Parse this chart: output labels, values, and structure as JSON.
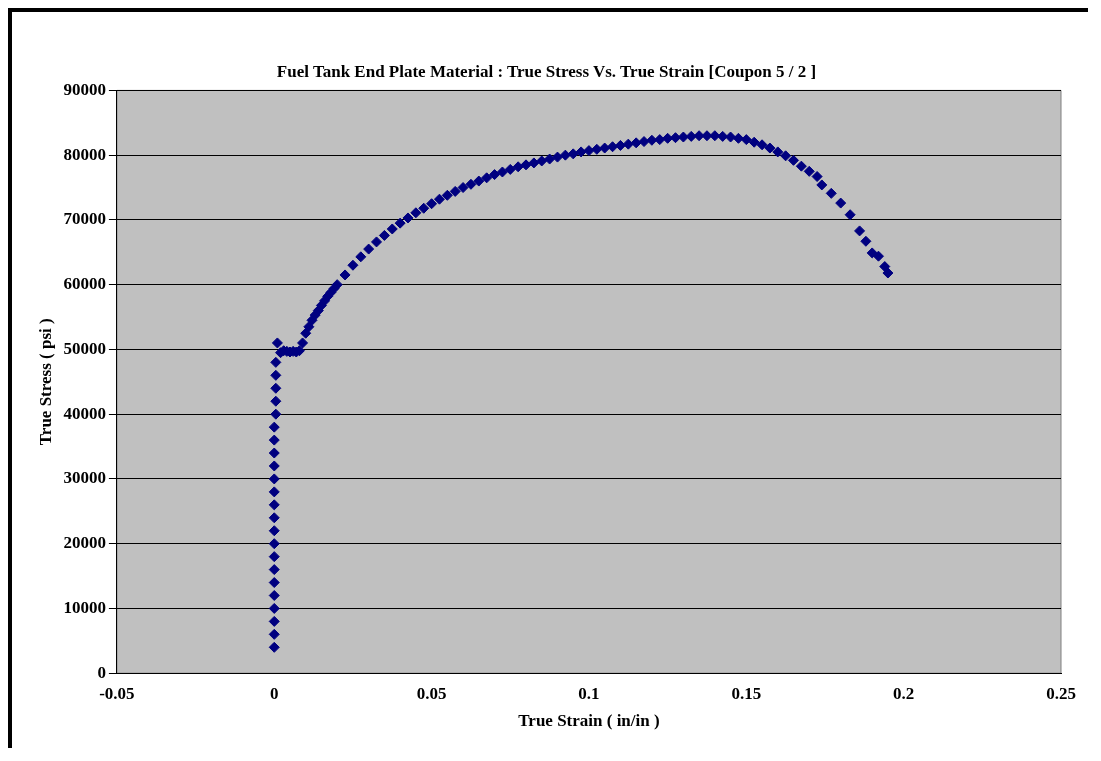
{
  "chart_data": {
    "type": "scatter",
    "title": "Fuel Tank End Plate Material : True Stress Vs. True Strain [Coupon 5 / 2 ]",
    "xlabel": "True Strain ( in/in )",
    "ylabel": "True Stress ( psi )",
    "xlim": [
      -0.05,
      0.25
    ],
    "xticks": [
      -0.05,
      0,
      0.05,
      0.1,
      0.15,
      0.2,
      0.25
    ],
    "ylim": [
      0,
      90000
    ],
    "yticks": [
      0,
      10000,
      20000,
      30000,
      40000,
      50000,
      60000,
      70000,
      80000,
      90000
    ],
    "grid": "y",
    "marker": "diamond",
    "legend": false,
    "series": [
      {
        "color": "#000080",
        "x": [
          0,
          0,
          0,
          0,
          0,
          0,
          0,
          0,
          0,
          0,
          0,
          0,
          0,
          0,
          0,
          0,
          0,
          0,
          0.0005,
          0.0005,
          0.0005,
          0.0005,
          0.0005,
          0.001,
          0.002,
          0.003,
          0.004,
          0.005,
          0.006,
          0.007,
          0.008,
          0.009,
          0.01,
          0.011,
          0.012,
          0.013,
          0.014,
          0.015,
          0.016,
          0.017,
          0.018,
          0.019,
          0.02,
          0.0225,
          0.025,
          0.0275,
          0.03,
          0.0325,
          0.035,
          0.0375,
          0.04,
          0.0425,
          0.045,
          0.0475,
          0.05,
          0.0525,
          0.055,
          0.0575,
          0.06,
          0.0625,
          0.065,
          0.0675,
          0.07,
          0.0725,
          0.075,
          0.0775,
          0.08,
          0.0825,
          0.085,
          0.0875,
          0.09,
          0.0925,
          0.095,
          0.0975,
          0.1,
          0.1025,
          0.105,
          0.1075,
          0.11,
          0.1125,
          0.115,
          0.1175,
          0.12,
          0.1225,
          0.125,
          0.1275,
          0.13,
          0.1325,
          0.135,
          0.1375,
          0.14,
          0.1425,
          0.145,
          0.1475,
          0.15,
          0.1525,
          0.155,
          0.1575,
          0.16,
          0.1625,
          0.165,
          0.1675,
          0.17,
          0.1725,
          0.174,
          0.177,
          0.18,
          0.183,
          0.186,
          0.188,
          0.19,
          0.192,
          0.194,
          0.195
        ],
        "values": [
          4000,
          6000,
          8000,
          10000,
          12000,
          14000,
          16000,
          18000,
          20000,
          22000,
          24000,
          26000,
          28000,
          30000,
          32000,
          34000,
          36000,
          38000,
          40000,
          42000,
          44000,
          46000,
          48000,
          51000,
          49500,
          49800,
          49700,
          49600,
          49700,
          49600,
          49800,
          51000,
          52500,
          53500,
          54500,
          55300,
          56000,
          56800,
          57500,
          58200,
          58800,
          59400,
          60000,
          61500,
          63000,
          64300,
          65500,
          66600,
          67600,
          68600,
          69500,
          70300,
          71100,
          71800,
          72500,
          73200,
          73800,
          74400,
          75000,
          75500,
          76000,
          76500,
          77000,
          77400,
          77800,
          78200,
          78500,
          78800,
          79100,
          79400,
          79700,
          80000,
          80200,
          80500,
          80700,
          80900,
          81100,
          81300,
          81500,
          81700,
          81900,
          82100,
          82300,
          82400,
          82600,
          82700,
          82800,
          82900,
          83000,
          83000,
          83000,
          82900,
          82800,
          82600,
          82400,
          82000,
          81600,
          81100,
          80500,
          79900,
          79200,
          78300,
          77500,
          76700,
          75400,
          74100,
          72600,
          70800,
          68300,
          66700,
          64900,
          64400,
          62800,
          61800
        ]
      }
    ]
  }
}
